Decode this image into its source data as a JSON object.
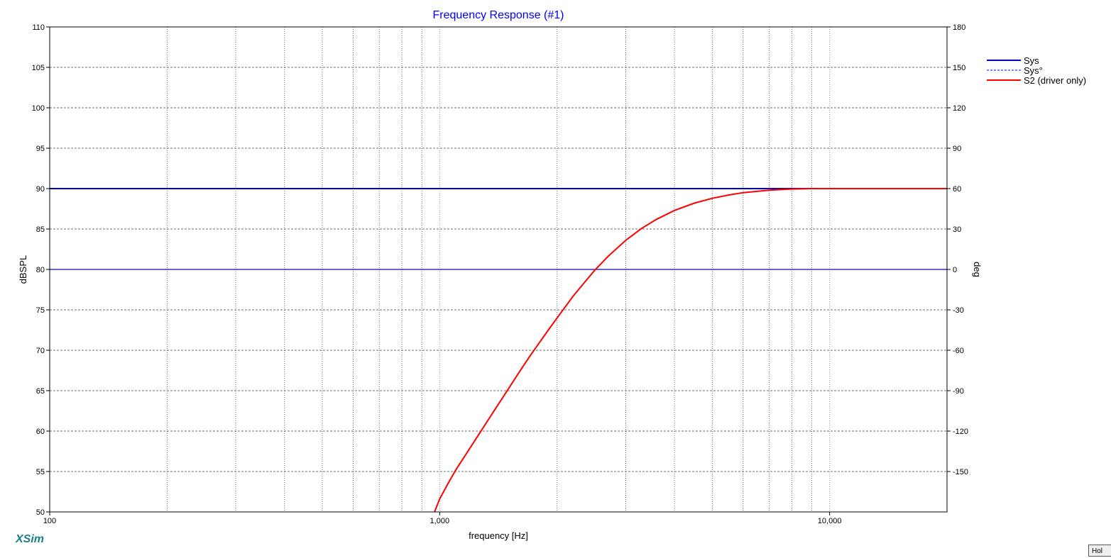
{
  "chart_data": {
    "type": "line",
    "title": "Frequency Response (#1)",
    "xlabel": "frequency [Hz]",
    "ylabel": "dBSPL",
    "y2label": "deg",
    "xscale": "log",
    "xlim": [
      100,
      20000
    ],
    "ylim": [
      50,
      110
    ],
    "y2lim": [
      -180,
      180
    ],
    "x_ticks": [
      100,
      1000,
      10000
    ],
    "x_tick_labels": [
      "100",
      "1,000",
      "10,000"
    ],
    "x_minor_grid": [
      200,
      300,
      400,
      500,
      600,
      700,
      800,
      900,
      2000,
      3000,
      4000,
      5000,
      6000,
      7000,
      8000,
      9000
    ],
    "y_ticks": [
      50,
      55,
      60,
      65,
      70,
      75,
      80,
      85,
      90,
      95,
      100,
      105,
      110
    ],
    "y2_ticks": [
      -150,
      -120,
      -90,
      -60,
      -30,
      0,
      30,
      60,
      90,
      120,
      150,
      180
    ],
    "grid": true,
    "legend_position": "right",
    "series": [
      {
        "name": "Sys",
        "axis": "left",
        "style": "solid",
        "color": "#0000cc",
        "x": [
          100,
          20000
        ],
        "y": [
          90,
          90
        ]
      },
      {
        "name": "Sys°",
        "axis": "right",
        "style": "dashed",
        "color": "#0000ff",
        "x": [
          100,
          20000
        ],
        "y": [
          0,
          0
        ]
      },
      {
        "name": "S2 (driver only)",
        "axis": "left",
        "style": "solid",
        "color": "#ff0000",
        "x": [
          970,
          1000,
          1050,
          1100,
          1200,
          1300,
          1400,
          1500,
          1600,
          1700,
          1800,
          1900,
          2000,
          2200,
          2400,
          2500,
          2700,
          3000,
          3300,
          3600,
          4000,
          4500,
          5000,
          5500,
          6000,
          7000,
          8000,
          9000,
          10000,
          20000
        ],
        "y": [
          50,
          51.6,
          53.5,
          55.2,
          58.0,
          60.6,
          63.0,
          65.2,
          67.3,
          69.2,
          70.9,
          72.5,
          74.0,
          76.7,
          78.9,
          79.9,
          81.6,
          83.6,
          85.1,
          86.2,
          87.3,
          88.2,
          88.8,
          89.2,
          89.5,
          89.8,
          89.95,
          90.0,
          90.0,
          90.0
        ]
      }
    ]
  },
  "brand": {
    "text": "XSim",
    "color": "#1a7f8a"
  },
  "hold_button": {
    "label": "Hol"
  },
  "colors": {
    "title": "#0000ff",
    "grid": "#444444"
  }
}
